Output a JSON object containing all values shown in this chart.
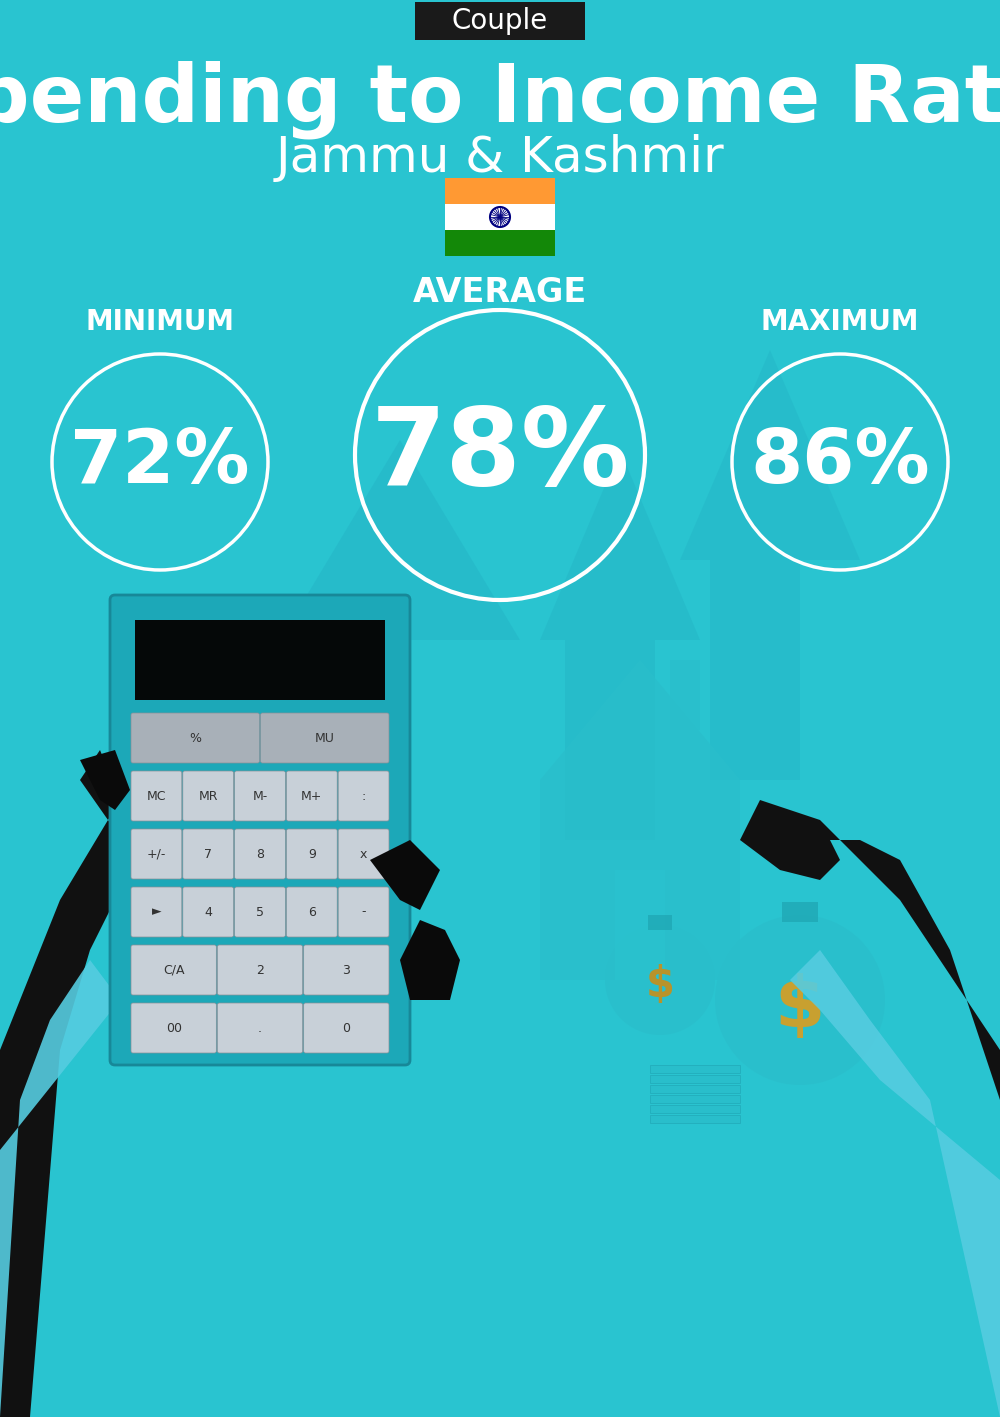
{
  "background_color": "#29c4d0",
  "title_badge_text": "Couple",
  "title_badge_bg": "#1a1a1a",
  "title_badge_fg": "#ffffff",
  "main_title": "Spending to Income Ratio",
  "subtitle": "Jammu & Kashmir",
  "min_label": "MINIMUM",
  "avg_label": "AVERAGE",
  "max_label": "MAXIMUM",
  "min_value": "72%",
  "avg_value": "78%",
  "max_value": "86%",
  "circle_color": "#ffffff",
  "text_color": "#ffffff",
  "india_flag_saffron": "#FF9933",
  "india_flag_white": "#FFFFFF",
  "india_flag_green": "#138808",
  "india_flag_navy": "#000080",
  "fig_w": 10.0,
  "fig_h": 14.17,
  "dpi": 100
}
